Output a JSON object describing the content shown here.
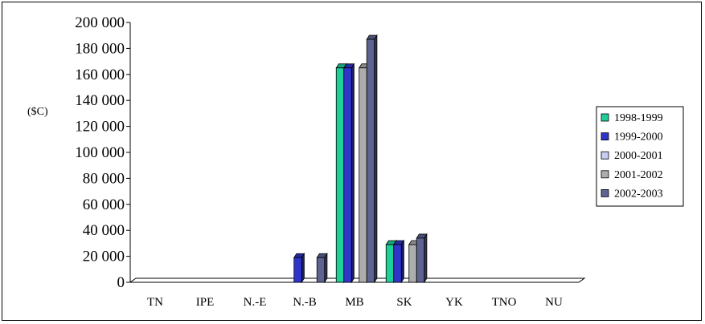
{
  "chart_data": {
    "type": "bar",
    "ylabel": "($C)",
    "ylim": [
      0,
      200000
    ],
    "yticks": [
      "0",
      "20 000",
      "40 000",
      "60 000",
      "80 000",
      "100 000",
      "120 000",
      "140 000",
      "160 000",
      "180 000",
      "200 000"
    ],
    "categories": [
      "TN",
      "IPE",
      "N.-E",
      "N.-B",
      "MB",
      "SK",
      "YK",
      "TNO",
      "NU"
    ],
    "series": [
      {
        "name": "1998-1999",
        "color": "#1fcf98",
        "values": [
          0,
          0,
          0,
          0,
          165000,
          29000,
          0,
          0,
          0
        ]
      },
      {
        "name": "1999-2000",
        "color": "#2f35c8",
        "values": [
          0,
          0,
          0,
          19000,
          165000,
          29000,
          0,
          0,
          0
        ]
      },
      {
        "name": "2000-2001",
        "color": "#c8ccf2",
        "values": [
          0,
          0,
          0,
          0,
          0,
          0,
          0,
          0,
          0
        ]
      },
      {
        "name": "2001-2002",
        "color": "#adadad",
        "values": [
          0,
          0,
          0,
          0,
          165000,
          29000,
          0,
          0,
          0
        ]
      },
      {
        "name": "2002-2003",
        "color": "#5e6392",
        "values": [
          0,
          0,
          0,
          19000,
          187000,
          34000,
          0,
          0,
          0
        ]
      }
    ],
    "legend_position": "right",
    "grid": false
  }
}
